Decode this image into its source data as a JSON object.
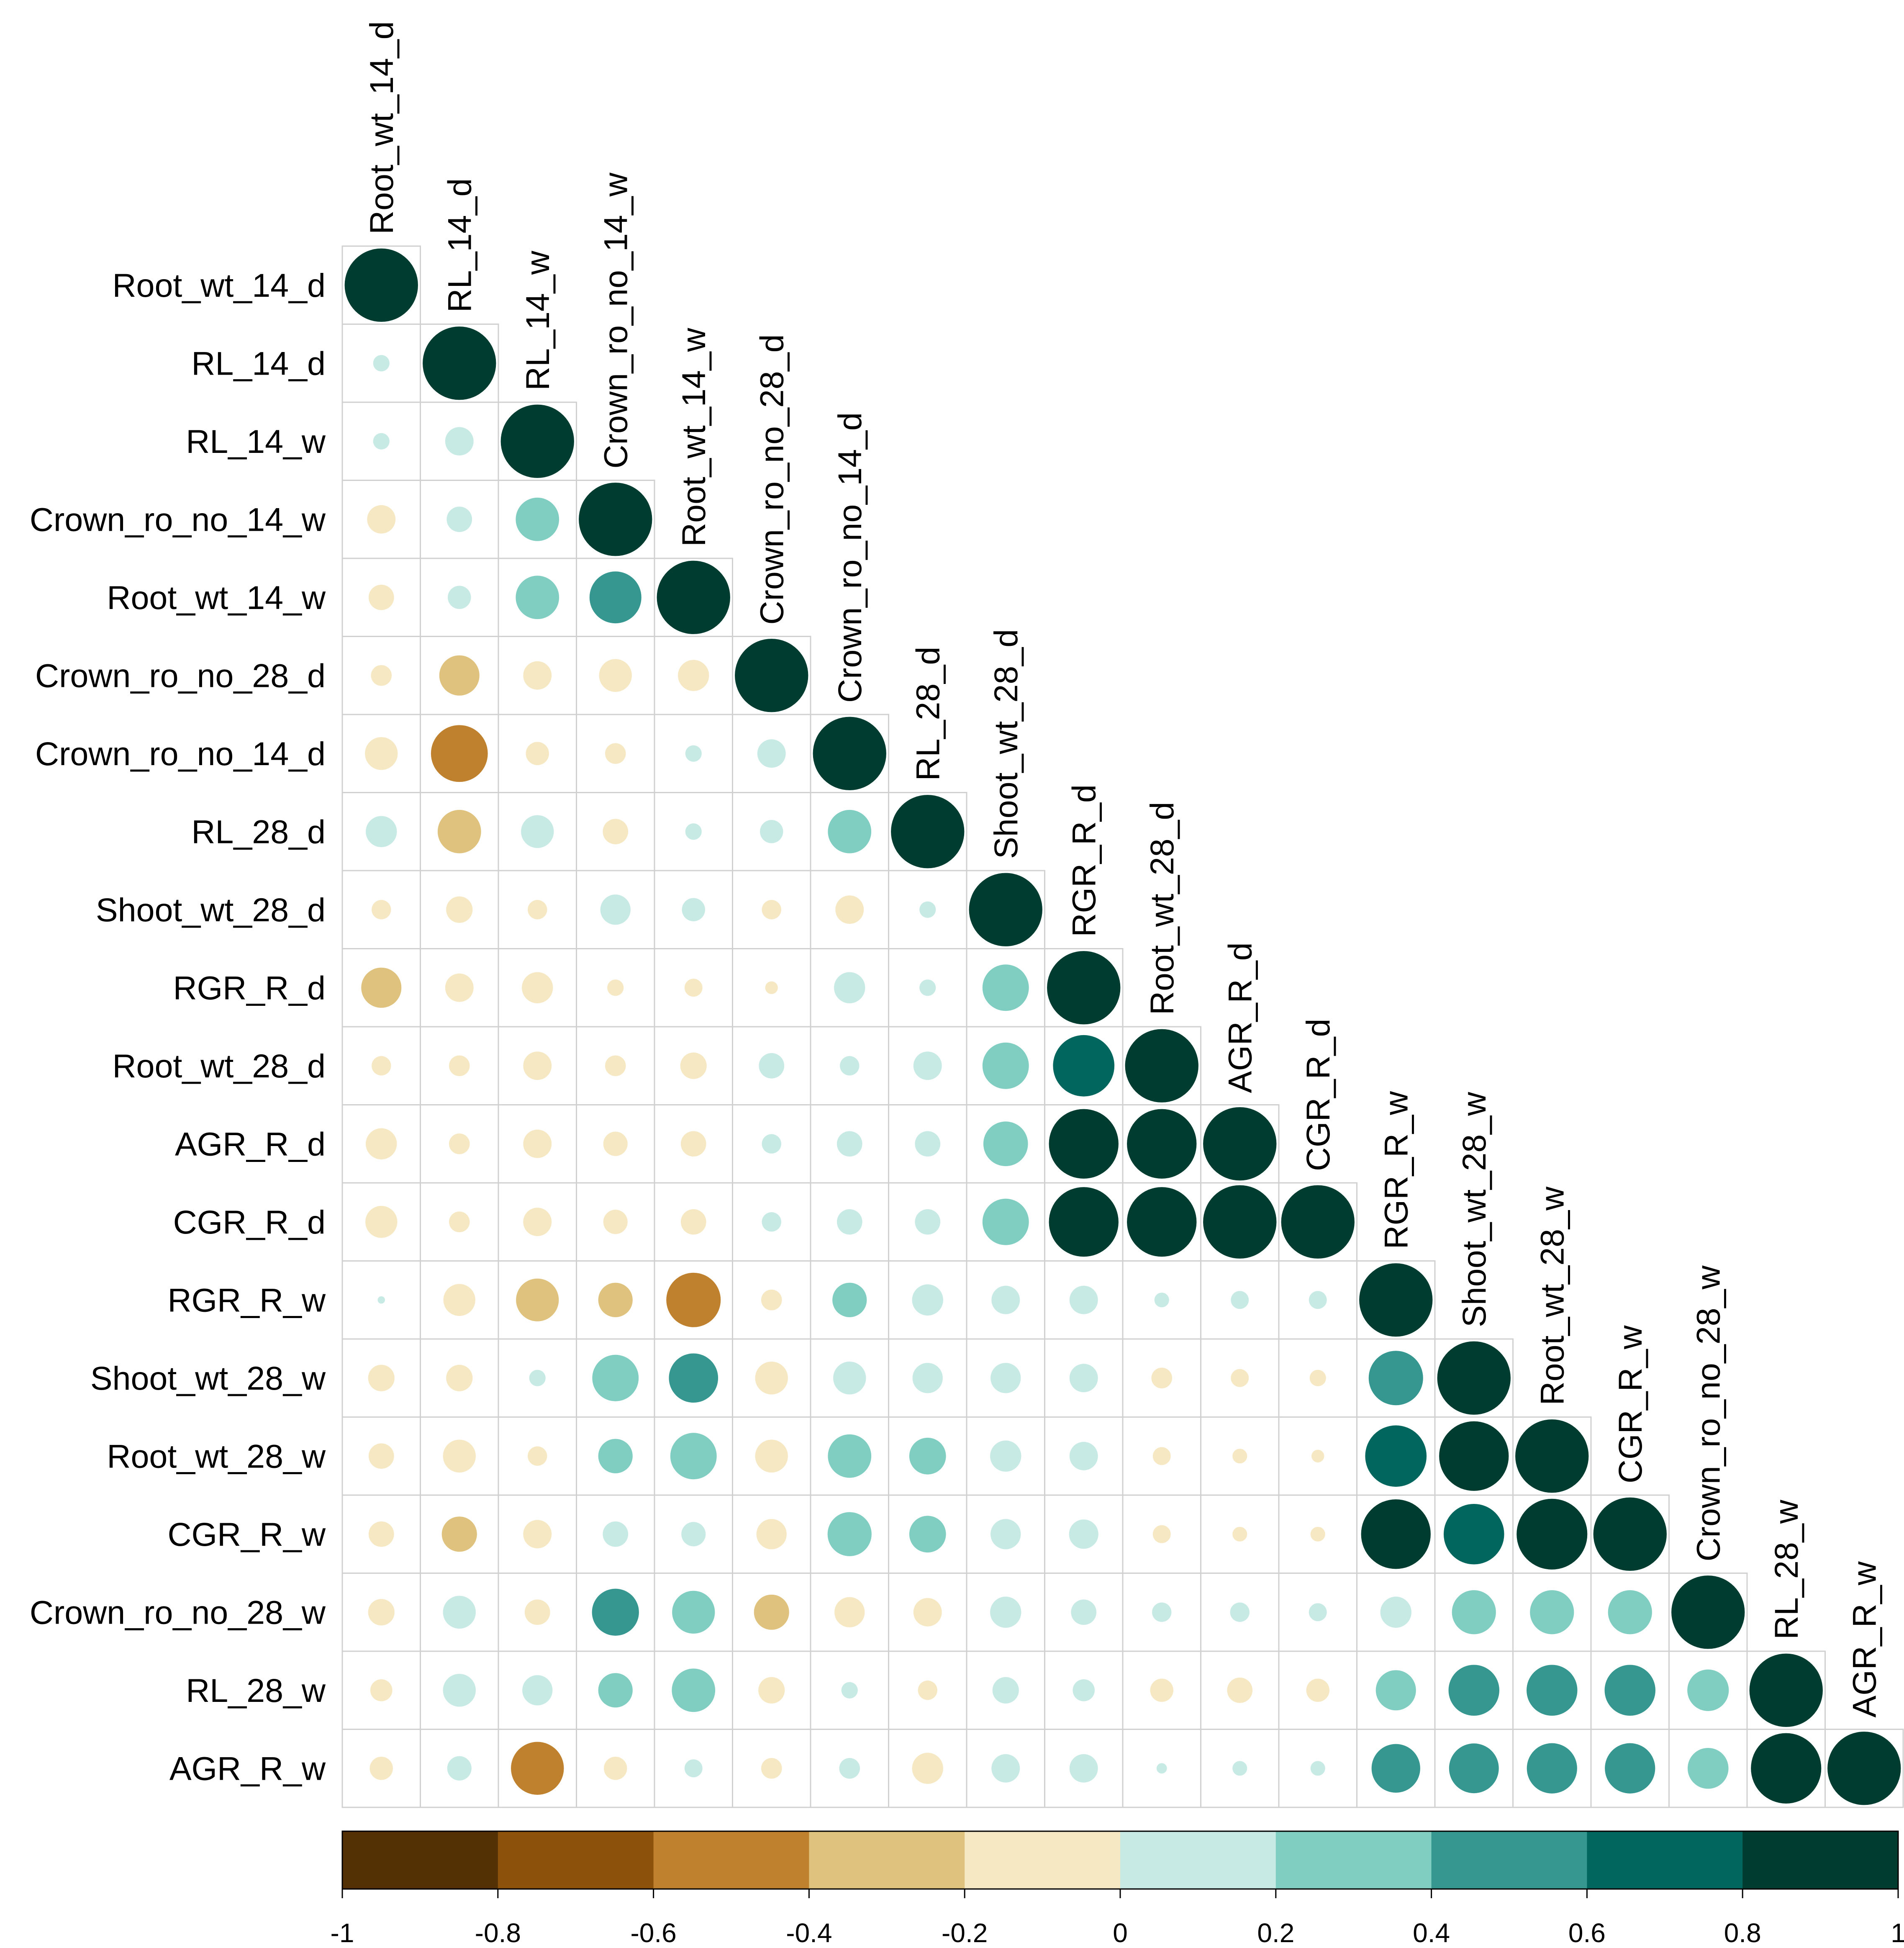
{
  "chart_data": {
    "type": "heatmap",
    "title": "",
    "subtype": "correlation lower-triangle circle plot",
    "variables": [
      "Root_wt_14_d",
      "RL_14_d",
      "RL_14_w",
      "Crown_ro_no_14_w",
      "Root_wt_14_w",
      "Crown_ro_no_28_d",
      "Crown_ro_no_14_d",
      "RL_28_d",
      "Shoot_wt_28_d",
      "RGR_R_d",
      "Root_wt_28_d",
      "AGR_R_d",
      "CGR_R_d",
      "RGR_R_w",
      "Shoot_wt_28_w",
      "Root_wt_28_w",
      "CGR_R_w",
      "Crown_ro_no_28_w",
      "RL_28_w",
      "AGR_R_w"
    ],
    "matrix": [
      [
        1
      ],
      [
        0.05,
        1
      ],
      [
        0.05,
        0.15,
        1
      ],
      [
        -0.15,
        0.12,
        0.35,
        1
      ],
      [
        -0.12,
        0.1,
        0.35,
        0.5,
        1
      ],
      [
        -0.08,
        -0.3,
        -0.15,
        -0.2,
        -0.18,
        1
      ],
      [
        -0.2,
        -0.6,
        -0.1,
        -0.08,
        0.05,
        0.15,
        1
      ],
      [
        0.18,
        -0.35,
        0.2,
        -0.12,
        0.05,
        0.1,
        0.35,
        1
      ],
      [
        -0.07,
        -0.13,
        -0.07,
        0.17,
        0.1,
        -0.07,
        -0.15,
        0.05,
        1
      ],
      [
        -0.3,
        -0.15,
        -0.18,
        -0.05,
        -0.06,
        -0.03,
        0.18,
        0.05,
        0.4,
        1
      ],
      [
        -0.07,
        -0.08,
        -0.15,
        -0.08,
        -0.13,
        0.12,
        0.07,
        0.15,
        0.4,
        0.7,
        1
      ],
      [
        -0.18,
        -0.08,
        -0.15,
        -0.11,
        -0.12,
        0.07,
        0.12,
        0.12,
        0.37,
        0.9,
        0.9,
        1
      ],
      [
        -0.19,
        -0.08,
        -0.15,
        -0.11,
        -0.12,
        0.07,
        0.12,
        0.12,
        0.4,
        0.9,
        0.9,
        1.0,
        1
      ],
      [
        0.01,
        -0.19,
        -0.34,
        -0.22,
        -0.55,
        -0.08,
        0.22,
        0.18,
        0.15,
        0.15,
        0.04,
        0.06,
        0.06,
        1
      ],
      [
        -0.13,
        -0.13,
        0.05,
        0.4,
        0.45,
        -0.2,
        0.2,
        0.17,
        0.17,
        0.15,
        -0.08,
        -0.06,
        -0.05,
        0.55,
        1
      ],
      [
        -0.12,
        -0.2,
        -0.07,
        0.22,
        0.4,
        -0.2,
        0.35,
        0.25,
        0.18,
        0.15,
        -0.06,
        -0.04,
        -0.03,
        0.7,
        0.9,
        1
      ],
      [
        -0.12,
        -0.23,
        -0.15,
        0.12,
        0.11,
        -0.17,
        0.36,
        0.25,
        0.17,
        0.16,
        -0.06,
        -0.04,
        -0.04,
        0.9,
        0.68,
        0.93,
        1
      ],
      [
        -0.13,
        0.2,
        -0.12,
        0.41,
        0.34,
        -0.23,
        -0.17,
        -0.15,
        0.18,
        0.12,
        0.07,
        0.07,
        0.06,
        0.18,
        0.36,
        0.36,
        0.36,
        1
      ],
      [
        -0.09,
        0.2,
        0.17,
        0.22,
        0.35,
        -0.13,
        0.05,
        -0.07,
        0.13,
        0.09,
        -0.1,
        -0.12,
        -0.1,
        0.3,
        0.48,
        0.48,
        0.48,
        0.32,
        1
      ],
      [
        -0.1,
        0.11,
        -0.52,
        -0.1,
        0.06,
        -0.08,
        0.08,
        -0.18,
        0.15,
        0.15,
        0.02,
        0.04,
        0.04,
        0.44,
        0.46,
        0.47,
        0.47,
        0.31,
        0.92,
        1
      ]
    ],
    "colorbar": {
      "ticks": [
        "-1",
        "-0.8",
        "-0.6",
        "-0.4",
        "-0.2",
        "0",
        "0.2",
        "0.4",
        "0.6",
        "0.8",
        "1"
      ],
      "colors": [
        "#543005",
        "#8c510a",
        "#bf812d",
        "#dfc27d",
        "#f6e8c3",
        "#c7eae5",
        "#80cdc1",
        "#35978f",
        "#01665e",
        "#003c30"
      ]
    },
    "xlabel": "",
    "ylabel": "",
    "xlim": [
      -1,
      1
    ]
  }
}
